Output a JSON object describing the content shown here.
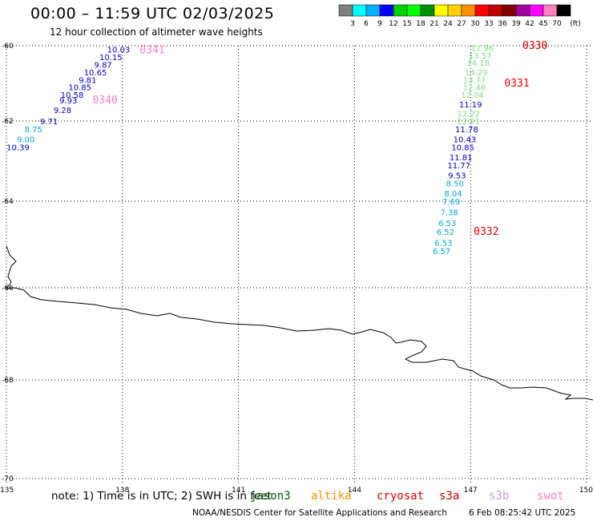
{
  "header": {
    "title": "00:00 – 11:59 UTC 02/03/2025",
    "subtitle": "12 hour collection of altimeter wave heights"
  },
  "colorbar": {
    "ticks": [
      "3",
      "6",
      "9",
      "12",
      "15",
      "18",
      "21",
      "24",
      "27",
      "30",
      "33",
      "36",
      "39",
      "42",
      "45",
      "70"
    ],
    "unit": "(ft)",
    "colors": [
      "#808080",
      "#00ffff",
      "#00b0ff",
      "#0000ff",
      "#00d000",
      "#00ff00",
      "#009000",
      "#ffff00",
      "#ffd000",
      "#ff9000",
      "#ff0000",
      "#c00000",
      "#800000",
      "#a000a0",
      "#ff00ff",
      "#ff80c0",
      "#000000"
    ]
  },
  "map": {
    "lat_axis_labels": [
      "-60",
      "-62",
      "-64",
      "-66",
      "-68",
      "-70"
    ],
    "lon_axis_labels": [
      "135",
      "138",
      "141",
      "144",
      "147",
      "150"
    ],
    "lat_range": [
      -70,
      -60
    ],
    "lon_range": [
      135,
      150
    ],
    "grid": "dotted"
  },
  "chart_data": {
    "type": "scatter",
    "x_label": "",
    "y_label": "",
    "tracks": [
      {
        "label": "0341",
        "label_color": "#ff80c0",
        "points": [
          {
            "lon": 137.9,
            "lat": -60.1,
            "swh": "10.03",
            "color": "#0000c0"
          },
          {
            "lon": 137.7,
            "lat": -60.3,
            "swh": "10.15",
            "color": "#0000c0"
          },
          {
            "lon": 137.5,
            "lat": -60.5,
            "swh": "9.87",
            "color": "#0000c0"
          },
          {
            "lon": 137.3,
            "lat": -60.7,
            "swh": "10.65",
            "color": "#0000c0"
          },
          {
            "lon": 137.1,
            "lat": -60.9,
            "swh": "9.81",
            "color": "#0000c0"
          },
          {
            "lon": 136.9,
            "lat": -61.1,
            "swh": "10.85",
            "color": "#0000c0"
          },
          {
            "lon": 136.7,
            "lat": -61.3,
            "swh": "10.58",
            "color": "#0000c0"
          }
        ]
      },
      {
        "label": "0340",
        "label_color": "#ff80c0",
        "points": [
          {
            "lon": 136.6,
            "lat": -61.45,
            "swh": "9.93",
            "color": "#0000c0"
          },
          {
            "lon": 136.45,
            "lat": -61.7,
            "swh": "9.28",
            "color": "#0000c0"
          },
          {
            "lon": 136.1,
            "lat": -62.0,
            "swh": "9.71",
            "color": "#0000c0"
          },
          {
            "lon": 135.7,
            "lat": -62.2,
            "swh": "8.75",
            "color": "#00a8e0"
          },
          {
            "lon": 135.5,
            "lat": -62.45,
            "swh": "9.00",
            "color": "#00a8e0"
          },
          {
            "lon": 135.3,
            "lat": -62.65,
            "swh": "10.39",
            "color": "#0000c0"
          }
        ]
      },
      {
        "label": "0330",
        "label_color": "#e00000",
        "points": [
          {
            "lon": 147.3,
            "lat": -60.05,
            "swh": "12.96",
            "color": "#80e080"
          },
          {
            "lon": 147.25,
            "lat": -60.25,
            "swh": "13.57",
            "color": "#80e080"
          },
          {
            "lon": 147.2,
            "lat": -60.45,
            "swh": "14.18",
            "color": "#80e080"
          },
          {
            "lon": 147.15,
            "lat": -60.7,
            "swh": "14.29",
            "color": "#80e080"
          }
        ]
      },
      {
        "label": "0331",
        "label_color": "#e00000",
        "points": [
          {
            "lon": 147.1,
            "lat": -60.9,
            "swh": "13.77",
            "color": "#80e080"
          },
          {
            "lon": 147.1,
            "lat": -61.1,
            "swh": "12.46",
            "color": "#80e080"
          },
          {
            "lon": 147.05,
            "lat": -61.3,
            "swh": "12.04",
            "color": "#80e080"
          },
          {
            "lon": 147.0,
            "lat": -61.55,
            "swh": "11.19",
            "color": "#0000c0"
          },
          {
            "lon": 146.95,
            "lat": -61.8,
            "swh": "12.22",
            "color": "#80e080"
          },
          {
            "lon": 146.95,
            "lat": -62.0,
            "swh": "12.21",
            "color": "#80e080"
          },
          {
            "lon": 146.9,
            "lat": -62.2,
            "swh": "11.78",
            "color": "#0000c0"
          },
          {
            "lon": 146.85,
            "lat": -62.45,
            "swh": "10.43",
            "color": "#0000c0"
          },
          {
            "lon": 146.8,
            "lat": -62.65,
            "swh": "10.85",
            "color": "#0000c0"
          },
          {
            "lon": 146.75,
            "lat": -62.9,
            "swh": "11.81",
            "color": "#0000c0"
          },
          {
            "lon": 146.7,
            "lat": -63.1,
            "swh": "11.77",
            "color": "#0000c0"
          },
          {
            "lon": 146.65,
            "lat": -63.35,
            "swh": "9.53",
            "color": "#0000c0"
          },
          {
            "lon": 146.6,
            "lat": -63.55,
            "swh": "8.50",
            "color": "#00a8e0"
          },
          {
            "lon": 146.55,
            "lat": -63.8,
            "swh": "8.04",
            "color": "#00a8e0"
          },
          {
            "lon": 146.5,
            "lat": -64.0,
            "swh": "7.69",
            "color": "#00a8e0"
          },
          {
            "lon": 146.45,
            "lat": -64.25,
            "swh": "7.38",
            "color": "#00a8e0"
          },
          {
            "lon": 146.4,
            "lat": -64.5,
            "swh": "6.53",
            "color": "#00a8e0"
          }
        ]
      },
      {
        "label": "0332",
        "label_color": "#e00000",
        "points": [
          {
            "lon": 146.35,
            "lat": -64.7,
            "swh": "6.52",
            "color": "#00a8e0"
          },
          {
            "lon": 146.3,
            "lat": -64.95,
            "swh": "6.53",
            "color": "#00a8e0"
          },
          {
            "lon": 146.25,
            "lat": -65.15,
            "swh": "6.57",
            "color": "#00a8e0"
          }
        ]
      }
    ]
  },
  "footer": {
    "note": "note:  1) Time is in UTC; 2) SWH is in feet",
    "satellites": [
      {
        "name": "jason3",
        "color": "#006000"
      },
      {
        "name": "altika",
        "color": "#ff9000"
      },
      {
        "name": "cryosat",
        "color": "#e00000"
      },
      {
        "name": "s3a",
        "color": "#c00000"
      },
      {
        "name": "s3b",
        "color": "#c0a0e0"
      },
      {
        "name": "swot",
        "color": "#ff80c0"
      }
    ],
    "credit": "NOAA/NESDIS Center for Satellite Applications and Research",
    "timestamp": "6 Feb 08:25:42 UTC 2025"
  }
}
